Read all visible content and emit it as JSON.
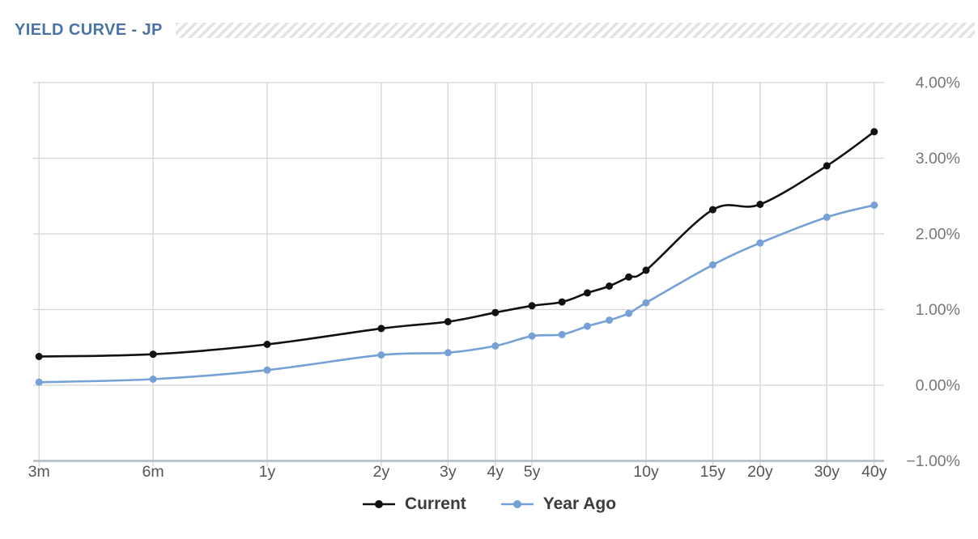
{
  "header": {
    "title": "YIELD CURVE - JP"
  },
  "legend": {
    "items": [
      {
        "label": "Current",
        "color": "#111111"
      },
      {
        "label": "Year Ago",
        "color": "#76a1d6"
      }
    ]
  },
  "colors": {
    "title": "#4b74a6",
    "grid": "#d4d4d4",
    "axis_line": "#b6bfc8",
    "x_tick_label": "#555555",
    "y_tick_label": "#777777",
    "legend_text": "#3c3c3c",
    "hatch_stripe": "#e3e3e3",
    "background": "#ffffff"
  },
  "chart_data": {
    "type": "line",
    "title": "YIELD CURVE - JP",
    "x_scale": "log",
    "x_unit": "maturity",
    "grid": true,
    "legend_position": "bottom-center",
    "y_axis_side": "right",
    "ylim": [
      -1,
      4
    ],
    "y_ticks": [
      {
        "label": "4.00%",
        "value": 4
      },
      {
        "label": "3.00%",
        "value": 3
      },
      {
        "label": "2.00%",
        "value": 2
      },
      {
        "label": "1.00%",
        "value": 1
      },
      {
        "label": "0.00%",
        "value": 0
      },
      {
        "label": "−1.00%",
        "value": -1
      }
    ],
    "x_ticks": [
      {
        "label": "3m",
        "years": 0.25
      },
      {
        "label": "6m",
        "years": 0.5
      },
      {
        "label": "1y",
        "years": 1
      },
      {
        "label": "2y",
        "years": 2
      },
      {
        "label": "3y",
        "years": 3
      },
      {
        "label": "4y",
        "years": 4
      },
      {
        "label": "5y",
        "years": 5
      },
      {
        "label": "10y",
        "years": 10
      },
      {
        "label": "15y",
        "years": 15
      },
      {
        "label": "20y",
        "years": 20
      },
      {
        "label": "30y",
        "years": 30
      },
      {
        "label": "40y",
        "years": 40
      }
    ],
    "categories": [
      "3m",
      "6m",
      "1y",
      "2y",
      "3y",
      "4y",
      "5y",
      "6y",
      "7y",
      "8y",
      "9y",
      "10y",
      "15y",
      "20y",
      "30y",
      "40y"
    ],
    "years": [
      0.25,
      0.5,
      1,
      2,
      3,
      4,
      5,
      6,
      7,
      8,
      9,
      10,
      15,
      20,
      30,
      40
    ],
    "series": [
      {
        "name": "Current",
        "color": "#111111",
        "values": [
          0.38,
          0.41,
          0.54,
          0.75,
          0.84,
          0.96,
          1.05,
          1.1,
          1.22,
          1.31,
          1.43,
          1.52,
          2.32,
          2.39,
          2.9,
          3.35
        ]
      },
      {
        "name": "Year Ago",
        "color": "#76a1d6",
        "values": [
          0.04,
          0.08,
          0.2,
          0.4,
          0.43,
          0.52,
          0.65,
          0.67,
          0.78,
          0.86,
          0.95,
          1.09,
          1.59,
          1.88,
          2.22,
          2.38
        ]
      }
    ]
  }
}
